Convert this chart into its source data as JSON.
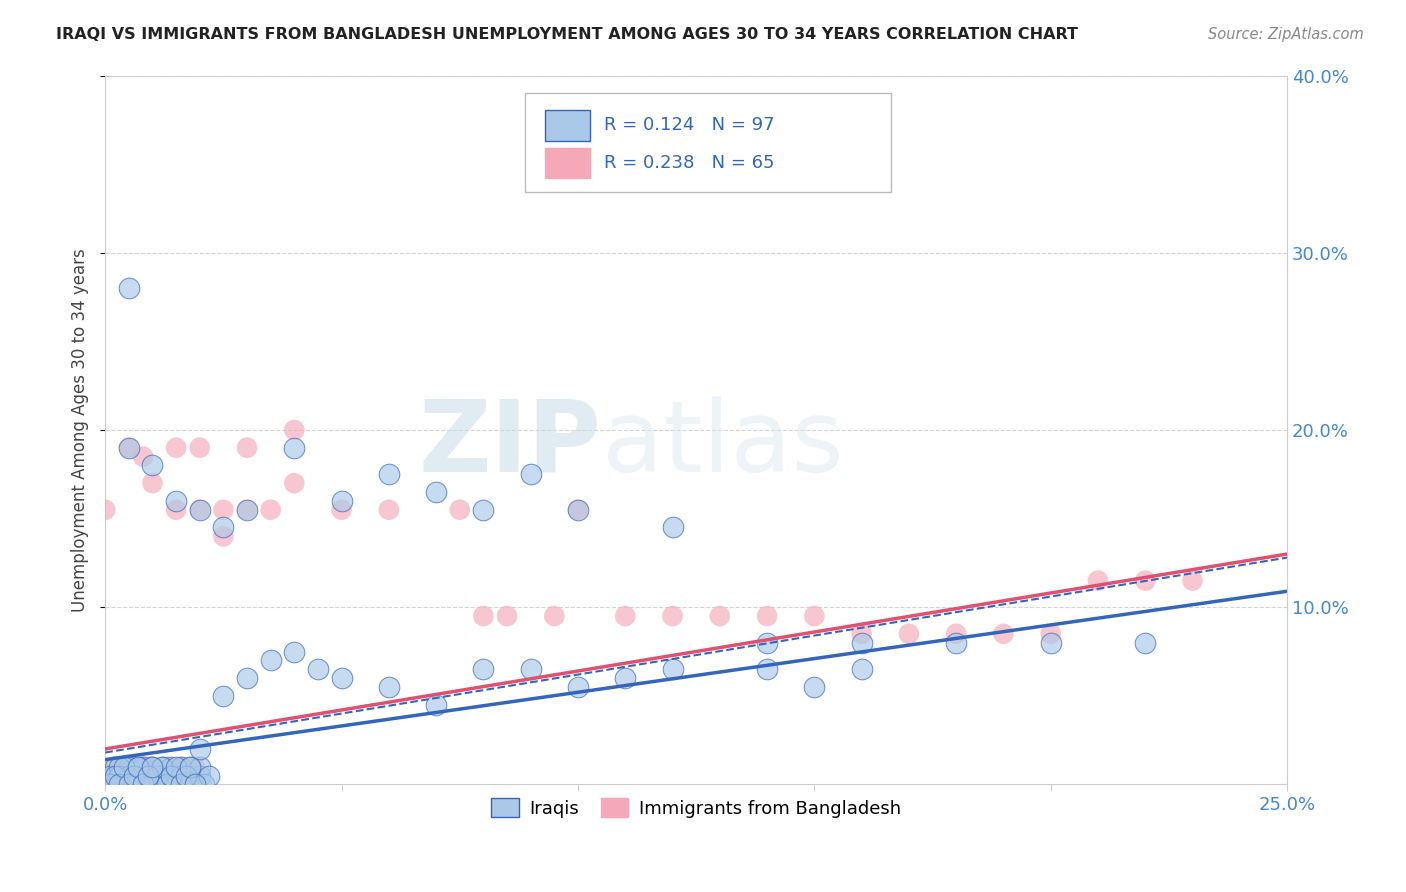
{
  "title": "IRAQI VS IMMIGRANTS FROM BANGLADESH UNEMPLOYMENT AMONG AGES 30 TO 34 YEARS CORRELATION CHART",
  "source": "Source: ZipAtlas.com",
  "ylabel": "Unemployment Among Ages 30 to 34 years",
  "xlim": [
    0.0,
    0.25
  ],
  "ylim": [
    0.0,
    0.4
  ],
  "xtick_vals": [
    0.0,
    0.05,
    0.1,
    0.15,
    0.2,
    0.25
  ],
  "xtick_labels": [
    "0.0%",
    "",
    "",
    "",
    "",
    "25.0%"
  ],
  "ytick_vals": [
    0.1,
    0.2,
    0.3,
    0.4
  ],
  "ytick_labels": [
    "10.0%",
    "20.0%",
    "30.0%",
    "40.0%"
  ],
  "blue_R": 0.124,
  "blue_N": 97,
  "pink_R": 0.238,
  "pink_N": 65,
  "blue_color": "#aac8e8",
  "pink_color": "#f4a8b8",
  "blue_line_color": "#3366bb",
  "pink_line_color": "#e05070",
  "blue_line_intercept": 0.014,
  "blue_line_slope": 0.38,
  "pink_line_intercept": 0.02,
  "pink_line_slope": 0.44,
  "watermark_zip": "ZIP",
  "watermark_atlas": "atlas",
  "legend_label_blue": "Iraqis",
  "legend_label_pink": "Immigrants from Bangladesh",
  "blue_x": [
    0.002,
    0.003,
    0.004,
    0.005,
    0.006,
    0.006,
    0.007,
    0.008,
    0.008,
    0.009,
    0.01,
    0.01,
    0.011,
    0.012,
    0.012,
    0.013,
    0.014,
    0.014,
    0.015,
    0.015,
    0.016,
    0.016,
    0.017,
    0.018,
    0.018,
    0.019,
    0.02,
    0.02,
    0.021,
    0.022,
    0.001,
    0.002,
    0.003,
    0.003,
    0.004,
    0.005,
    0.006,
    0.007,
    0.008,
    0.009,
    0.01,
    0.011,
    0.012,
    0.013,
    0.014,
    0.015,
    0.016,
    0.017,
    0.018,
    0.019,
    0.001,
    0.002,
    0.003,
    0.004,
    0.005,
    0.006,
    0.007,
    0.008,
    0.009,
    0.01,
    0.02,
    0.025,
    0.03,
    0.035,
    0.04,
    0.045,
    0.05,
    0.06,
    0.07,
    0.08,
    0.09,
    0.1,
    0.11,
    0.12,
    0.14,
    0.15,
    0.16,
    0.005,
    0.01,
    0.015,
    0.02,
    0.025,
    0.03,
    0.04,
    0.05,
    0.06,
    0.07,
    0.08,
    0.09,
    0.1,
    0.12,
    0.14,
    0.16,
    0.18,
    0.2,
    0.22,
    0.005
  ],
  "blue_y": [
    0.01,
    0.005,
    0.0,
    0.01,
    0.005,
    0.0,
    0.005,
    0.01,
    0.0,
    0.005,
    0.01,
    0.0,
    0.005,
    0.0,
    0.01,
    0.005,
    0.0,
    0.01,
    0.005,
    0.0,
    0.01,
    0.005,
    0.0,
    0.005,
    0.01,
    0.0,
    0.005,
    0.01,
    0.0,
    0.005,
    0.005,
    0.0,
    0.01,
    0.005,
    0.0,
    0.005,
    0.0,
    0.01,
    0.0,
    0.005,
    0.0,
    0.005,
    0.01,
    0.0,
    0.005,
    0.01,
    0.0,
    0.005,
    0.01,
    0.0,
    0.0,
    0.005,
    0.0,
    0.01,
    0.0,
    0.005,
    0.01,
    0.0,
    0.005,
    0.01,
    0.02,
    0.05,
    0.06,
    0.07,
    0.075,
    0.065,
    0.06,
    0.055,
    0.045,
    0.065,
    0.065,
    0.055,
    0.06,
    0.065,
    0.065,
    0.055,
    0.065,
    0.19,
    0.18,
    0.16,
    0.155,
    0.145,
    0.155,
    0.19,
    0.16,
    0.175,
    0.165,
    0.155,
    0.175,
    0.155,
    0.145,
    0.08,
    0.08,
    0.08,
    0.08,
    0.08,
    0.28
  ],
  "pink_x": [
    0.001,
    0.002,
    0.003,
    0.004,
    0.005,
    0.006,
    0.007,
    0.008,
    0.009,
    0.01,
    0.01,
    0.011,
    0.012,
    0.013,
    0.014,
    0.015,
    0.016,
    0.017,
    0.018,
    0.019,
    0.001,
    0.002,
    0.003,
    0.004,
    0.005,
    0.006,
    0.007,
    0.008,
    0.009,
    0.01,
    0.005,
    0.008,
    0.01,
    0.015,
    0.02,
    0.025,
    0.025,
    0.03,
    0.035,
    0.04,
    0.05,
    0.06,
    0.075,
    0.08,
    0.085,
    0.095,
    0.1,
    0.11,
    0.12,
    0.13,
    0.14,
    0.15,
    0.16,
    0.17,
    0.18,
    0.19,
    0.2,
    0.21,
    0.22,
    0.23,
    0.015,
    0.02,
    0.03,
    0.04,
    0.0
  ],
  "pink_y": [
    0.005,
    0.0,
    0.01,
    0.0,
    0.005,
    0.0,
    0.005,
    0.01,
    0.0,
    0.005,
    0.01,
    0.0,
    0.005,
    0.01,
    0.0,
    0.005,
    0.01,
    0.0,
    0.005,
    0.01,
    0.005,
    0.01,
    0.0,
    0.005,
    0.0,
    0.01,
    0.0,
    0.005,
    0.01,
    0.0,
    0.19,
    0.185,
    0.17,
    0.155,
    0.155,
    0.14,
    0.155,
    0.155,
    0.155,
    0.17,
    0.155,
    0.155,
    0.155,
    0.095,
    0.095,
    0.095,
    0.155,
    0.095,
    0.095,
    0.095,
    0.095,
    0.095,
    0.085,
    0.085,
    0.085,
    0.085,
    0.085,
    0.115,
    0.115,
    0.115,
    0.19,
    0.19,
    0.19,
    0.2,
    0.155
  ]
}
